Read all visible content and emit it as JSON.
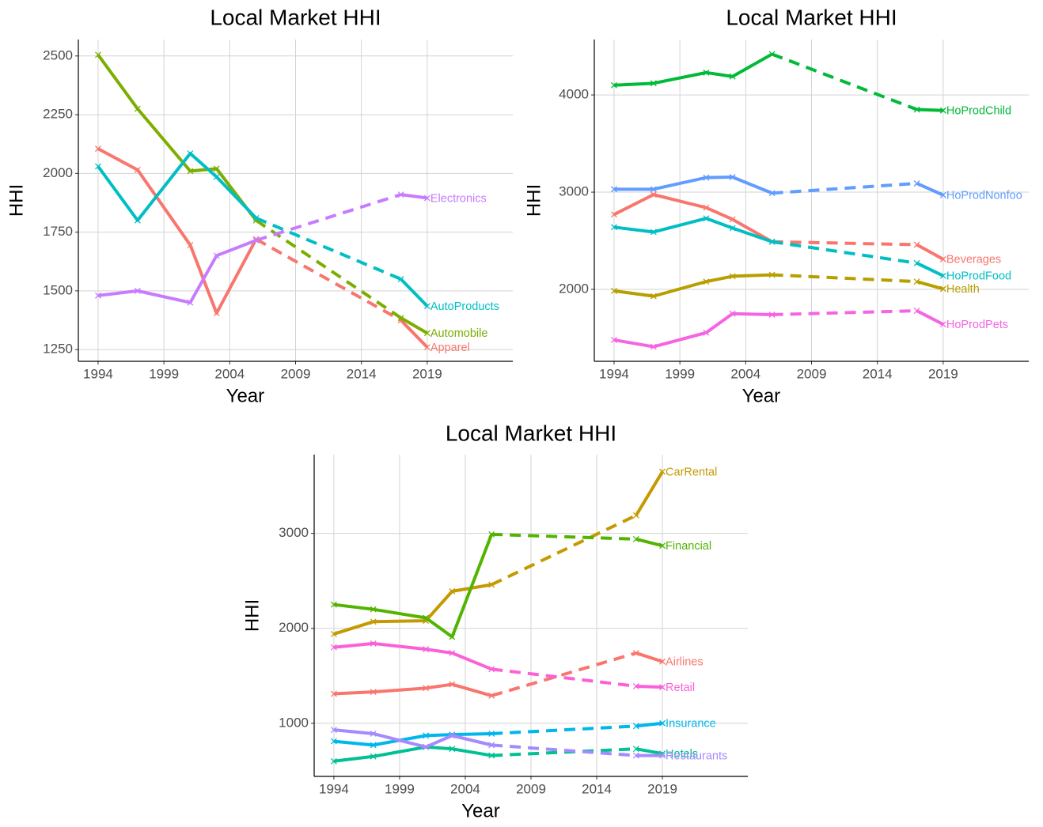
{
  "chart_data": [
    {
      "type": "line",
      "title": "Local Market HHI",
      "x_label": "Year",
      "y_label": "HHI",
      "x": [
        1994,
        1997,
        2001,
        2003,
        2006,
        2017,
        2019
      ],
      "dashed_x_range": [
        2006,
        2017
      ],
      "xlim": [
        1992.5,
        2025.5
      ],
      "xticks": [
        1994,
        1999,
        2004,
        2009,
        2014,
        2019
      ],
      "ylim": [
        1200,
        2570
      ],
      "yticks": [
        1250,
        1500,
        1750,
        2000,
        2250,
        2500
      ],
      "grid": true,
      "series": [
        {
          "name": "Apparel",
          "color": "#F8766D",
          "values": [
            2105,
            2015,
            1695,
            1405,
            1720,
            1375,
            1260
          ]
        },
        {
          "name": "Automobile",
          "color": "#7CAE00",
          "values": [
            2505,
            2275,
            2010,
            2020,
            1800,
            1385,
            1320
          ]
        },
        {
          "name": "AutoProducts",
          "color": "#00BFC4",
          "values": [
            2030,
            1800,
            2085,
            1985,
            1810,
            1550,
            1435
          ]
        },
        {
          "name": "Electronics",
          "color": "#C77CFF",
          "values": [
            1480,
            1500,
            1450,
            1650,
            1715,
            1910,
            1895
          ]
        }
      ]
    },
    {
      "type": "line",
      "title": "Local Market HHI",
      "x_label": "Year",
      "y_label": "HHI",
      "x": [
        1994,
        1997,
        2001,
        2003,
        2006,
        2017,
        2019
      ],
      "dashed_x_range": [
        2006,
        2017
      ],
      "xlim": [
        1992.5,
        2025.5
      ],
      "xticks": [
        1994,
        1999,
        2004,
        2009,
        2014,
        2019
      ],
      "ylim": [
        1260,
        4570
      ],
      "yticks": [
        2000,
        3000,
        4000
      ],
      "grid": true,
      "series": [
        {
          "name": "HoProdChild",
          "color": "#00BA38",
          "values": [
            4100,
            4120,
            4230,
            4190,
            4420,
            3850,
            3840
          ]
        },
        {
          "name": "HoProdNonfoo",
          "color": "#619CFF",
          "values": [
            3030,
            3030,
            3150,
            3155,
            2990,
            3090,
            2970
          ]
        },
        {
          "name": "Beverages",
          "color": "#F8766D",
          "values": [
            2770,
            2975,
            2840,
            2720,
            2490,
            2460,
            2310
          ]
        },
        {
          "name": "HoProdFood",
          "color": "#00BFC4",
          "values": [
            2640,
            2590,
            2730,
            2630,
            2490,
            2270,
            2140
          ]
        },
        {
          "name": "Health",
          "color": "#B79F00",
          "values": [
            1985,
            1930,
            2080,
            2135,
            2150,
            2080,
            2005
          ]
        },
        {
          "name": "HoProdPets",
          "color": "#F564E3",
          "values": [
            1480,
            1410,
            1555,
            1750,
            1740,
            1780,
            1640
          ]
        }
      ]
    },
    {
      "type": "line",
      "title": "Local Market HHI",
      "x_label": "Year",
      "y_label": "HHI",
      "x": [
        1994,
        1997,
        2001,
        2003,
        2006,
        2017,
        2019
      ],
      "dashed_x_range": [
        2006,
        2017
      ],
      "xlim": [
        1992.5,
        2025.5
      ],
      "xticks": [
        1994,
        1999,
        2004,
        2009,
        2014,
        2019
      ],
      "ylim": [
        440,
        3830
      ],
      "yticks": [
        1000,
        2000,
        3000
      ],
      "grid": true,
      "series": [
        {
          "name": "CarRental",
          "color": "#C49A00",
          "values": [
            1940,
            2070,
            2080,
            2390,
            2460,
            3190,
            3650
          ]
        },
        {
          "name": "Financial",
          "color": "#53B400",
          "values": [
            2250,
            2200,
            2110,
            1910,
            2990,
            2940,
            2870
          ]
        },
        {
          "name": "Airlines",
          "color": "#F8766D",
          "values": [
            1310,
            1330,
            1370,
            1410,
            1290,
            1740,
            1650
          ]
        },
        {
          "name": "Retail",
          "color": "#FB61D7",
          "values": [
            1800,
            1840,
            1780,
            1740,
            1570,
            1390,
            1380
          ]
        },
        {
          "name": "Insurance",
          "color": "#00B6EB",
          "values": [
            810,
            770,
            870,
            880,
            890,
            970,
            1000
          ]
        },
        {
          "name": "Hotels",
          "color": "#00C094",
          "values": [
            600,
            650,
            750,
            730,
            660,
            730,
            680
          ]
        },
        {
          "name": "Restaurants",
          "color": "#A58AFF",
          "values": [
            930,
            890,
            750,
            870,
            770,
            660,
            660
          ]
        }
      ]
    }
  ]
}
